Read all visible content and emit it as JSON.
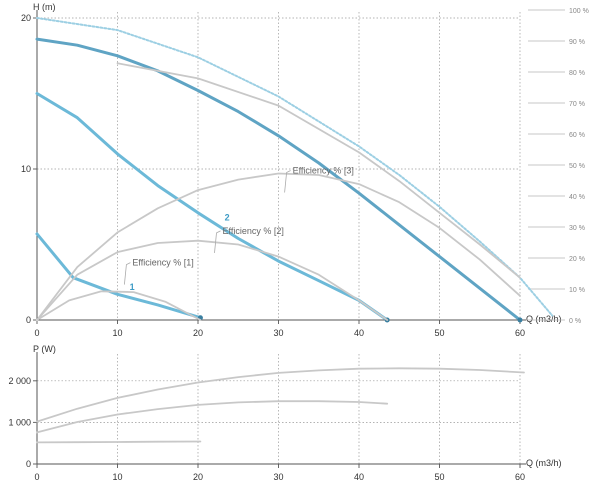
{
  "chart_data": [
    {
      "type": "line",
      "ylabel": "H (m)",
      "xlabel": "Q (m3/h)",
      "xlim": [
        0,
        60
      ],
      "ylim": [
        0,
        20
      ],
      "x_ticks": [
        "0",
        "10",
        "20",
        "30",
        "40",
        "50",
        "60"
      ],
      "y_ticks": [
        "0",
        "10",
        "20"
      ],
      "y2_ticks": [
        "0 %",
        "10 %",
        "20 %",
        "30 %",
        "40 %",
        "50 %",
        "60 %",
        "70 %",
        "80 %",
        "90 %",
        "100 %"
      ],
      "y2lim": [
        0,
        100
      ],
      "grid": "dotted",
      "curve_labels": [
        {
          "text": "1",
          "x": 11.5,
          "y": 2.0
        },
        {
          "text": "2",
          "x": 23.3,
          "y": 6.6
        }
      ],
      "series": [
        {
          "role": "pump-curve",
          "color": "#6cb9d8",
          "x": [
            0,
            4.5,
            10,
            15,
            20.3
          ],
          "y": [
            5.7,
            2.8,
            1.7,
            1.0,
            0.15
          ]
        },
        {
          "role": "pump-curve",
          "color": "#6cb9d8",
          "x": [
            0,
            5,
            10,
            15,
            20,
            25,
            30,
            35,
            40,
            43.5
          ],
          "y": [
            15,
            13.4,
            11.0,
            8.9,
            7.1,
            5.4,
            3.9,
            2.6,
            1.3,
            0
          ]
        },
        {
          "role": "pump-curve",
          "color": "#5fa4c4",
          "x": [
            0,
            5,
            10,
            15,
            20,
            25,
            30,
            35,
            40,
            45,
            50,
            55,
            60
          ],
          "y": [
            18.6,
            18.2,
            17.5,
            16.5,
            15.2,
            13.8,
            12.2,
            10.4,
            8.4,
            6.3,
            4.2,
            2.1,
            0
          ]
        },
        {
          "role": "pump-curve-max",
          "color": "#9ccfe3",
          "dashed": true,
          "x": [
            0,
            10,
            20,
            30,
            40,
            45,
            50,
            55,
            60,
            64
          ],
          "y": [
            20.0,
            19.2,
            17.4,
            14.8,
            11.5,
            9.6,
            7.5,
            5.2,
            2.8,
            0.3
          ]
        },
        {
          "role": "efficiency",
          "name": "Efficiency % [1]",
          "color": "#c8c8c8",
          "x": [
            0,
            4,
            8,
            12,
            16,
            20.3
          ],
          "y": [
            0,
            1.3,
            1.9,
            1.85,
            1.2,
            0
          ]
        },
        {
          "role": "efficiency",
          "name": "Efficiency % [2]",
          "color": "#c8c8c8",
          "x": [
            0,
            5,
            10,
            15,
            20,
            25,
            30,
            35,
            40,
            43.5
          ],
          "y": [
            0,
            3.0,
            4.5,
            5.1,
            5.25,
            5.0,
            4.2,
            3.0,
            1.3,
            0
          ]
        },
        {
          "role": "efficiency",
          "name": "Efficiency % [3]",
          "color": "#c8c8c8",
          "x": [
            0,
            5,
            10,
            15,
            20,
            25,
            30,
            35,
            40,
            45,
            50,
            55,
            60
          ],
          "y": [
            0,
            3.5,
            5.8,
            7.4,
            8.6,
            9.3,
            9.7,
            9.6,
            9.0,
            7.8,
            6.1,
            4.0,
            1.6
          ]
        },
        {
          "role": "efficiency",
          "color": "#c8c8c8",
          "x": [
            10,
            20,
            30,
            40,
            45,
            50,
            55,
            60
          ],
          "y": [
            17.0,
            16.0,
            14.2,
            11.1,
            9.2,
            7.1,
            5.0,
            2.8
          ]
        }
      ],
      "efficiency_labels": [
        {
          "text": "Efficiency % [1]",
          "x": 11.6,
          "y": 3.8
        },
        {
          "text": "Efficiency % [2]",
          "x": 22.8,
          "y": 5.9
        },
        {
          "text": "Efficiency % [3]",
          "x": 31.5,
          "y": 9.9
        }
      ]
    },
    {
      "type": "line",
      "ylabel": "P (W)",
      "xlabel": "Q (m3/h)",
      "xlim": [
        0,
        60
      ],
      "ylim": [
        0,
        2500
      ],
      "x_ticks": [
        "0",
        "10",
        "20",
        "30",
        "40",
        "50",
        "60"
      ],
      "y_ticks": [
        "0",
        "1 000",
        "2 000"
      ],
      "grid": "dotted",
      "series": [
        {
          "role": "power",
          "color": "#c8c8c8",
          "x": [
            0,
            5,
            10,
            15,
            20.3
          ],
          "y": [
            520,
            525,
            530,
            535,
            540
          ]
        },
        {
          "role": "power",
          "color": "#c8c8c8",
          "x": [
            0,
            5,
            10,
            15,
            20,
            25,
            30,
            35,
            40,
            43.5
          ],
          "y": [
            760,
            1010,
            1190,
            1320,
            1420,
            1480,
            1510,
            1510,
            1490,
            1450
          ]
        },
        {
          "role": "power",
          "color": "#c8c8c8",
          "x": [
            0,
            5,
            10,
            15,
            20,
            25,
            30,
            35,
            40,
            45,
            50,
            55,
            60.5
          ],
          "y": [
            1020,
            1330,
            1590,
            1790,
            1960,
            2090,
            2190,
            2250,
            2290,
            2300,
            2290,
            2260,
            2200
          ]
        }
      ]
    }
  ]
}
